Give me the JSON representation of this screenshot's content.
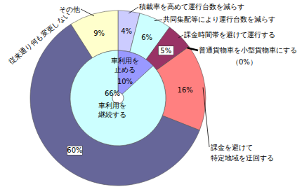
{
  "chart_data": [
    {
      "type": "donut",
      "categories": [
        "積載率を高めて運行台数を減らす",
        "共同集配等により運行台数を減らす",
        "課金時間帯を避けて運行する",
        "普通貨物車を小型貨物車にする",
        "課金を避けて\n特定地域を迂回する",
        "従来通り何も変更しない",
        "その他"
      ],
      "values": [
        4,
        6,
        5,
        0,
        16,
        60,
        9
      ],
      "value_labels": [
        "4%",
        "6%",
        "5%",
        "（0%）",
        "16%",
        "60%",
        "9%"
      ],
      "colors": [
        "#ccccff",
        "#ccffff",
        "#993366",
        "#999999",
        "#ff8080",
        "#666699",
        "#ffffcc"
      ],
      "data_labels": true
    },
    {
      "type": "pie",
      "categories": [
        "車利用を\n止める",
        "車利用を\n継続する"
      ],
      "values": [
        10,
        66
      ],
      "value_labels": [
        "10%",
        "66%"
      ],
      "colors": [
        "#9999ff",
        "#ccffff"
      ],
      "data_labels": true
    }
  ]
}
